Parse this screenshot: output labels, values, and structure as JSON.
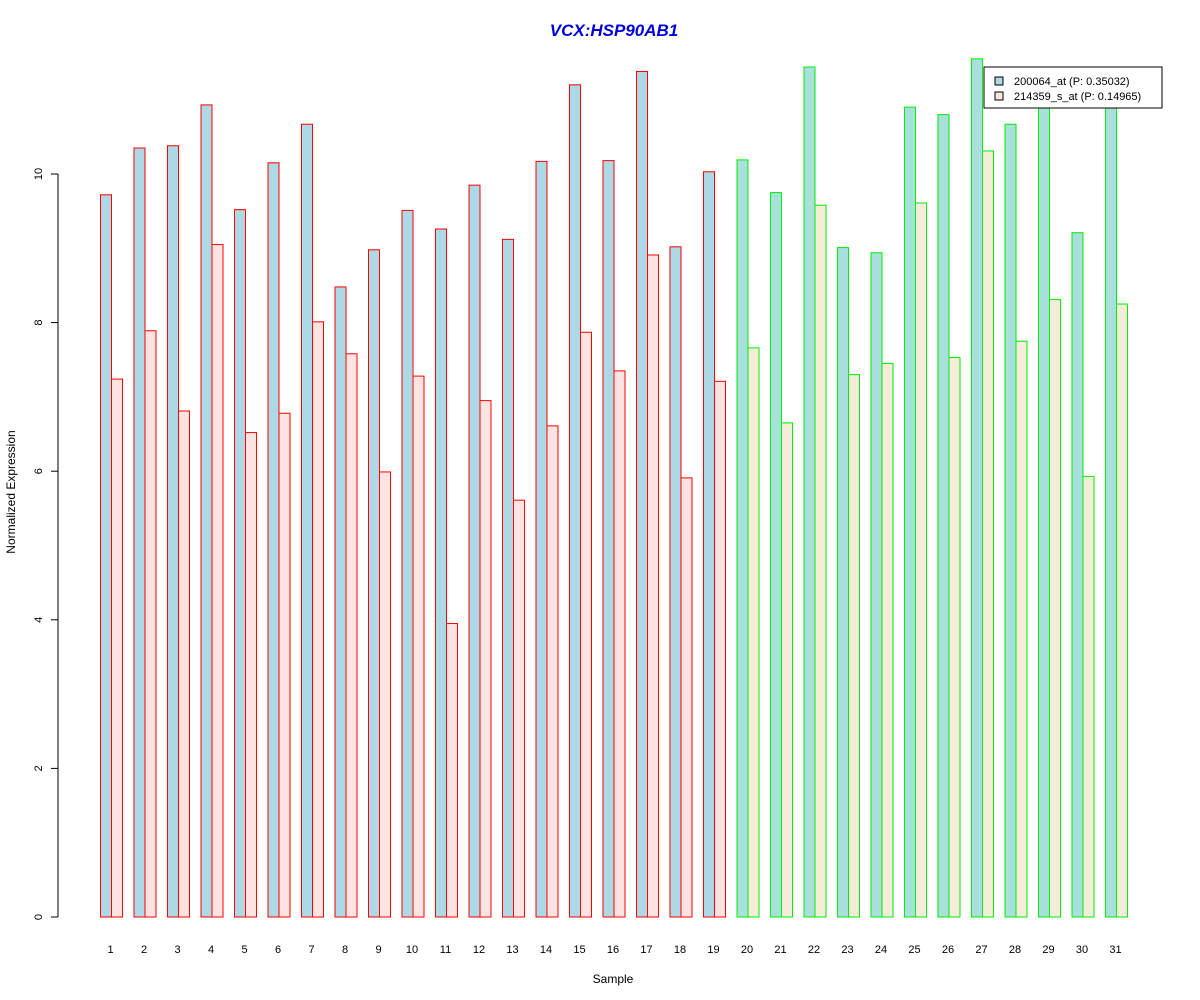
{
  "chart_data": {
    "type": "bar",
    "title": "VCX:HSP90AB1",
    "xlabel": "Sample",
    "ylabel": "Normalized Expression",
    "ylim": [
      0,
      11.6
    ],
    "yticks": [
      0,
      2,
      4,
      6,
      8,
      10
    ],
    "categories": [
      "1",
      "2",
      "3",
      "4",
      "5",
      "6",
      "7",
      "8",
      "9",
      "10",
      "11",
      "12",
      "13",
      "14",
      "15",
      "16",
      "17",
      "18",
      "19",
      "20",
      "21",
      "22",
      "23",
      "24",
      "25",
      "26",
      "27",
      "28",
      "29",
      "30",
      "31"
    ],
    "groups": [
      {
        "samples": [
          1,
          19
        ],
        "border_color": "#ff0000",
        "fill_colors": [
          "#add8e6",
          "#ffe4e1"
        ]
      },
      {
        "samples": [
          20,
          31
        ],
        "border_color": "#00ee00",
        "fill_colors": [
          "#a8e0dc",
          "#f5ecd9"
        ]
      }
    ],
    "series": [
      {
        "name": "200064_at (P: 0.35032)",
        "values": [
          9.72,
          10.35,
          10.38,
          10.93,
          9.52,
          10.15,
          10.67,
          8.48,
          8.98,
          9.51,
          9.26,
          9.85,
          9.12,
          10.17,
          11.2,
          10.18,
          11.38,
          9.02,
          10.03,
          10.19,
          9.75,
          11.44,
          9.01,
          8.94,
          10.9,
          10.8,
          11.55,
          10.67,
          10.96,
          9.21,
          10.95
        ]
      },
      {
        "name": "214359_s_at (P: 0.14965)",
        "values": [
          7.24,
          7.89,
          6.81,
          9.05,
          6.52,
          6.78,
          8.01,
          7.58,
          5.99,
          7.28,
          3.95,
          6.95,
          5.61,
          6.61,
          7.87,
          7.35,
          8.91,
          5.91,
          7.21,
          7.66,
          6.65,
          9.58,
          7.3,
          7.45,
          9.61,
          7.53,
          10.31,
          7.75,
          8.31,
          5.93,
          8.25
        ]
      }
    ],
    "legend": {
      "position": "top-right",
      "swatch_colors": [
        "#add8e6",
        "#ffe4e1"
      ]
    },
    "grid": false
  }
}
